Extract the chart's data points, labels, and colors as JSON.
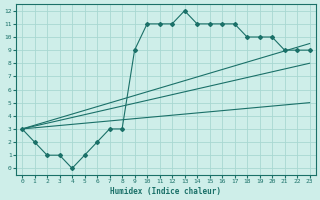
{
  "xlabel": "Humidex (Indice chaleur)",
  "xlim": [
    -0.5,
    23.5
  ],
  "ylim": [
    -0.5,
    12.5
  ],
  "xticks": [
    0,
    1,
    2,
    3,
    4,
    5,
    6,
    7,
    8,
    9,
    10,
    11,
    12,
    13,
    14,
    15,
    16,
    17,
    18,
    19,
    20,
    21,
    22,
    23
  ],
  "yticks": [
    0,
    1,
    2,
    3,
    4,
    5,
    6,
    7,
    8,
    9,
    10,
    11,
    12
  ],
  "background_color": "#ceeee9",
  "grid_color": "#a8d8d2",
  "line_color": "#1a7068",
  "line1_x": [
    0,
    1,
    2,
    3,
    4,
    5,
    6,
    7,
    8,
    9,
    10,
    11,
    12,
    13,
    14,
    15,
    16,
    17,
    18,
    19,
    20,
    21,
    22,
    23
  ],
  "line1_y": [
    3,
    2,
    1,
    1,
    0,
    1,
    2,
    3,
    3,
    9,
    11,
    11,
    11,
    12,
    11,
    11,
    11,
    11,
    10,
    10,
    10,
    9,
    9,
    9
  ],
  "line2_x": [
    0,
    23
  ],
  "line2_y": [
    3,
    9.5
  ],
  "line3_x": [
    0,
    23
  ],
  "line3_y": [
    3,
    8.0
  ],
  "line4_x": [
    0,
    23
  ],
  "line4_y": [
    3,
    5.0
  ]
}
